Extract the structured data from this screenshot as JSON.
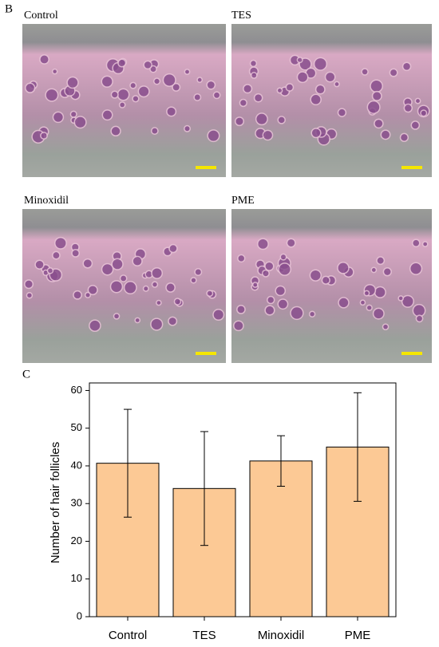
{
  "panels": {
    "b": "B",
    "c": "C"
  },
  "images": [
    {
      "label": "Control"
    },
    {
      "label": "TES"
    },
    {
      "label": "Minoxidil"
    },
    {
      "label": "PME"
    }
  ],
  "chart_data": {
    "type": "bar",
    "y_label": "Number of hair follicles",
    "categories": [
      "Control",
      "TES",
      "Minoxidil",
      "PME"
    ],
    "values": [
      40.7,
      34.0,
      41.3,
      45.0
    ],
    "errors": [
      14.3,
      15.1,
      6.7,
      14.4
    ],
    "color": "#fcc995",
    "ylim": [
      0,
      62
    ],
    "yticks": [
      0,
      10,
      20,
      30,
      40,
      50,
      60
    ]
  }
}
